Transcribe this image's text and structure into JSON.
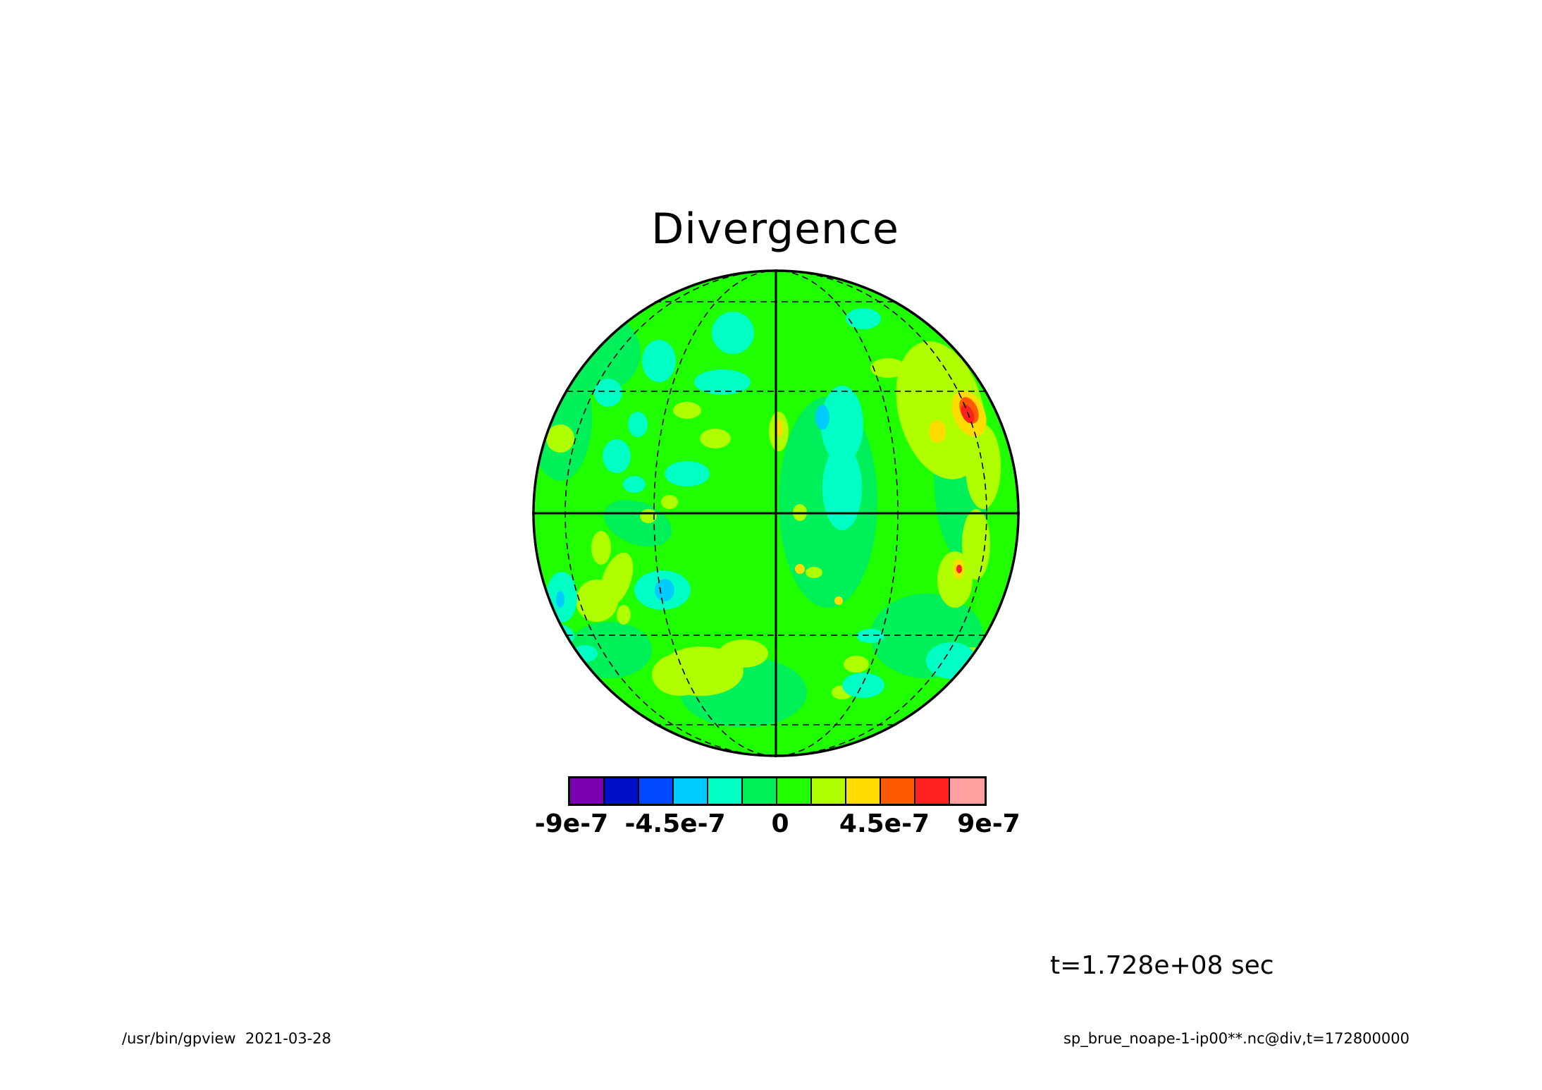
{
  "title": "Divergence",
  "time_label": "t=1.728e+08 sec",
  "footer": {
    "left": "/usr/bin/gpview  2021-03-28",
    "right": "sp_brue_noape-1-ip00**.nc@div,t=172800000"
  },
  "projection": "orthographic",
  "grid": {
    "solid_lines": [
      "equator",
      "central meridian"
    ],
    "dashed_lines": [
      "latitude circles",
      "meridians"
    ]
  },
  "colorbar": {
    "colors": [
      "#7a00b0",
      "#0010c8",
      "#0048ff",
      "#00ccff",
      "#00ffc4",
      "#00f05a",
      "#20ff00",
      "#b0ff00",
      "#ffdc00",
      "#ff5a00",
      "#ff2020",
      "#ffa0a0"
    ],
    "tick_labels": [
      "-9e-7",
      "-4.5e-7",
      "0",
      "4.5e-7",
      "9e-7"
    ]
  },
  "anomalies": [
    {
      "color": "#ff5a00",
      "label": "local maximum near 9e-7"
    },
    {
      "color": "#ffdc00",
      "label": "positive"
    },
    {
      "color": "#b0ff00",
      "label": "weak positive"
    },
    {
      "color": "#00ffc4",
      "label": "weak negative"
    },
    {
      "color": "#00ccff",
      "label": "negative"
    }
  ]
}
